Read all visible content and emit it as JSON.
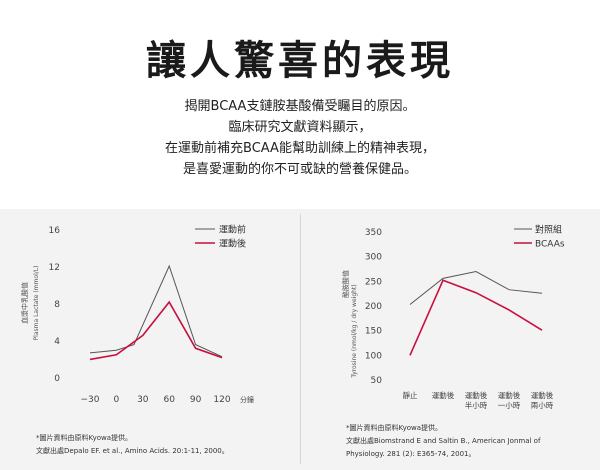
{
  "headline": "讓人驚喜的表現",
  "intro_lines": [
    "揭開BCAA支鏈胺基酸備受矚目的原因。",
    "臨床研究文獻資料顯示，",
    "在運動前補充BCAA能幫助訓練上的精神表現，",
    "是喜愛運動的你不可或缺的營養保健品。"
  ],
  "colors": {
    "series_a": "#555555",
    "series_b": "#c8103e",
    "panel_bg": "#f3f3f3"
  },
  "chart_data": [
    {
      "type": "line",
      "ylabel_cn": "血漿中乳酸值",
      "ylabel_en": "Plasma Lactate (mmol/L)",
      "xlabel": "分鐘",
      "x": [
        -30,
        0,
        30,
        60,
        90,
        120
      ],
      "ylim": [
        0,
        16
      ],
      "yticks": [
        0,
        4,
        8,
        12,
        16
      ],
      "xticks": [
        "−30",
        "0",
        "30",
        "60",
        "90",
        "120"
      ],
      "series": [
        {
          "name": "運動前",
          "x": [
            -30,
            0,
            20,
            60,
            90,
            120
          ],
          "values": [
            2.6,
            2.9,
            3.5,
            12.0,
            3.5,
            2.2
          ]
        },
        {
          "name": "運動後",
          "x": [
            -30,
            0,
            30,
            60,
            90,
            120
          ],
          "values": [
            1.9,
            2.4,
            4.5,
            8.1,
            3.1,
            2.1
          ]
        }
      ],
      "source_lines": [
        "*圖片資料由原料Kyowa提供。",
        "文獻出處Depalo EF. et al., Amino Acids. 20:1-11, 2000。"
      ]
    },
    {
      "type": "line",
      "ylabel_cn": "酪胺酸值",
      "ylabel_en": "Tyrosine (nmol/kg / dry weight)",
      "categories": [
        [
          "靜止"
        ],
        [
          "運動後"
        ],
        [
          "運動後",
          "半小時"
        ],
        [
          "運動後",
          "一小時"
        ],
        [
          "運動後",
          "兩小時"
        ]
      ],
      "ylim": [
        50,
        350
      ],
      "yticks": [
        50,
        100,
        150,
        200,
        250,
        300,
        350
      ],
      "series": [
        {
          "name": "對照組",
          "values": [
            201,
            254,
            268,
            231,
            224
          ]
        },
        {
          "name": "BCAAs",
          "values": [
            98,
            250,
            225,
            190,
            149
          ]
        }
      ],
      "source_lines": [
        "*圖片資料由原料Kyowa提供。",
        "文獻出處Biomstrand E and Saltin B., American Jonmal of",
        "Physiology. 281 (2): E365-74, 2001。"
      ]
    }
  ]
}
